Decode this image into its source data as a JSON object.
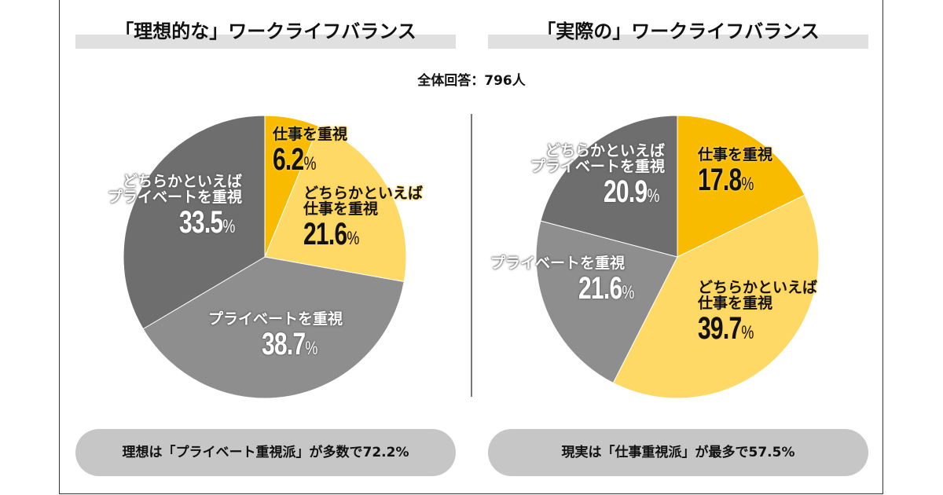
{
  "total_label": "全体回答：796人",
  "colors": {
    "work": "#f9bb00",
    "rather_work": "#ffd966",
    "private": "#8e8e8e",
    "rather_private": "#6e6e6e"
  },
  "chart_data": [
    {
      "type": "pie",
      "title": "「理想的な」ワークライフバランス",
      "slices": [
        {
          "label": "仕事を重視",
          "label_lines": [
            "仕事を重視"
          ],
          "value": 6.2,
          "display": "6.2",
          "color": "#f9bb00"
        },
        {
          "label": "どちらかといえば仕事を重視",
          "label_lines": [
            "どちらかといえば",
            "仕事を重視"
          ],
          "value": 21.6,
          "display": "21.6",
          "color": "#ffd966"
        },
        {
          "label": "プライベートを重視",
          "label_lines": [
            "プライベートを重視"
          ],
          "value": 38.7,
          "display": "38.7",
          "color": "#8e8e8e"
        },
        {
          "label": "どちらかといえばプライベートを重視",
          "label_lines": [
            "どちらかといえば",
            "プライベートを重視"
          ],
          "value": 33.5,
          "display": "33.5",
          "color": "#6e6e6e"
        }
      ],
      "unit": "%",
      "summary": "理想は「プライベート重視派」が多数で72.2%"
    },
    {
      "type": "pie",
      "title": "「実際の」ワークライフバランス",
      "slices": [
        {
          "label": "仕事を重視",
          "label_lines": [
            "仕事を重視"
          ],
          "value": 17.8,
          "display": "17.8",
          "color": "#f9bb00"
        },
        {
          "label": "どちらかといえば仕事を重視",
          "label_lines": [
            "どちらかといえば",
            "仕事を重視"
          ],
          "value": 39.7,
          "display": "39.7",
          "color": "#ffd966"
        },
        {
          "label": "プライベートを重視",
          "label_lines": [
            "プライベートを重視"
          ],
          "value": 21.6,
          "display": "21.6",
          "color": "#8e8e8e"
        },
        {
          "label": "どちらかといえばプライベートを重視",
          "label_lines": [
            "どちらかといえば",
            "プライベートを重視"
          ],
          "value": 20.9,
          "display": "20.9",
          "color": "#6e6e6e"
        }
      ],
      "unit": "%",
      "summary": "現実は「仕事重視派」が最多で57.5%"
    }
  ]
}
